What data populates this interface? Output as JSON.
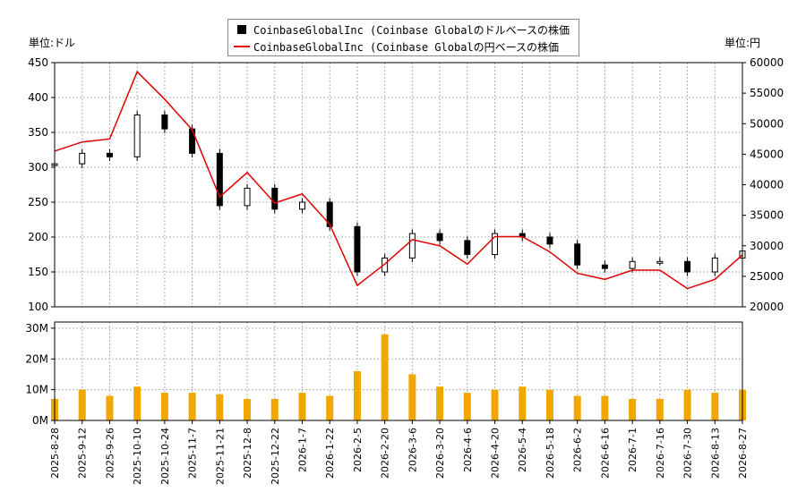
{
  "legend": {
    "usd_label": "CoinbaseGlobalInc (Coinbase Globalのドルベースの株価",
    "jpy_label": "CoinbaseGlobalInc (Coinbase Globalの円ベースの株価"
  },
  "units": {
    "left": "単位:ドル",
    "right": "単位:円"
  },
  "colors": {
    "usd_series": "#000000",
    "jpy_series": "#e00000",
    "volume": "#f0a800",
    "grid": "#b0b0b0"
  },
  "chart_data": [
    {
      "type": "line",
      "title": "",
      "x_ticks": [
        "2025-8-28",
        "2025-9-12",
        "2025-9-26",
        "2025-10-10",
        "2025-10-24",
        "2025-11-7",
        "2025-11-21",
        "2025-12-8",
        "2025-12-22",
        "2026-1-7",
        "2026-1-22",
        "2026-2-5",
        "2026-2-20",
        "2026-3-6",
        "2026-3-20",
        "2026-4-6",
        "2026-4-20",
        "2026-5-4",
        "2026-5-18",
        "2026-6-2",
        "2026-6-16",
        "2026-7-1",
        "2026-7-16",
        "2026-7-30",
        "2026-8-13",
        "2026-8-27"
      ],
      "y_left": {
        "ticks": [
          "450",
          "400",
          "350",
          "300",
          "250",
          "200",
          "150",
          "100"
        ],
        "ylim": [
          100,
          450
        ]
      },
      "y_right": {
        "ticks": [
          "60000",
          "55000",
          "50000",
          "45000",
          "40000",
          "35000",
          "30000",
          "25000",
          "20000"
        ],
        "ylim": [
          20000,
          60000
        ]
      },
      "series": [
        {
          "name": "CoinbaseGlobalInc (Coinbase Globalのドルベースの株価",
          "kind": "candlestick",
          "axis": "left",
          "dates": [
            "2025-8-28",
            "2025-9-12",
            "2025-9-26",
            "2025-10-10",
            "2025-10-24",
            "2025-11-7",
            "2025-11-21",
            "2025-12-8",
            "2025-12-22",
            "2026-1-7",
            "2026-1-22",
            "2026-2-5",
            "2026-2-20",
            "2026-3-6",
            "2026-3-20",
            "2026-4-6",
            "2026-4-20",
            "2026-5-4",
            "2026-5-18",
            "2026-6-2",
            "2026-6-16",
            "2026-7-1",
            "2026-7-16",
            "2026-7-30",
            "2026-8-13",
            "2026-8-27"
          ],
          "values": [
            305,
            320,
            315,
            375,
            355,
            320,
            245,
            270,
            240,
            250,
            215,
            150,
            170,
            205,
            195,
            175,
            205,
            200,
            190,
            160,
            155,
            165,
            165,
            150,
            170,
            180
          ]
        },
        {
          "name": "CoinbaseGlobalInc (Coinbase Globalの円ベースの株価",
          "kind": "line",
          "axis": "right",
          "dates": [
            "2025-8-28",
            "2025-9-12",
            "2025-9-26",
            "2025-10-10",
            "2025-10-24",
            "2025-11-7",
            "2025-11-21",
            "2025-12-8",
            "2025-12-22",
            "2026-1-7",
            "2026-1-22",
            "2026-2-5",
            "2026-2-20",
            "2026-3-6",
            "2026-3-20",
            "2026-4-6",
            "2026-4-20",
            "2026-5-4",
            "2026-5-18",
            "2026-6-2",
            "2026-6-16",
            "2026-7-1",
            "2026-7-16",
            "2026-7-30",
            "2026-8-13",
            "2026-8-27"
          ],
          "values": [
            45500,
            47000,
            47500,
            58500,
            54000,
            49000,
            38000,
            42000,
            37000,
            38500,
            33500,
            23500,
            27000,
            31000,
            30000,
            27000,
            31500,
            31500,
            29000,
            25500,
            24500,
            26000,
            26000,
            23000,
            24500,
            28500
          ]
        }
      ]
    },
    {
      "type": "bar",
      "title": "",
      "y_ticks": [
        "30M",
        "20M",
        "10M",
        "0M"
      ],
      "ylim": [
        0,
        32000000
      ],
      "x": [
        "2025-8-28",
        "2025-9-12",
        "2025-9-26",
        "2025-10-10",
        "2025-10-24",
        "2025-11-7",
        "2025-11-21",
        "2025-12-8",
        "2025-12-22",
        "2026-1-7",
        "2026-1-22",
        "2026-2-5",
        "2026-2-20",
        "2026-3-6",
        "2026-3-20",
        "2026-4-6",
        "2026-4-20",
        "2026-5-4",
        "2026-5-18",
        "2026-6-2",
        "2026-6-16",
        "2026-7-1",
        "2026-7-16",
        "2026-7-30",
        "2026-8-13",
        "2026-8-27"
      ],
      "series": [
        {
          "name": "",
          "values": [
            7000000,
            10000000,
            8000000,
            11000000,
            9000000,
            9000000,
            8500000,
            7000000,
            7000000,
            9000000,
            8000000,
            16000000,
            28000000,
            15000000,
            11000000,
            9000000,
            10000000,
            11000000,
            10000000,
            8000000,
            8000000,
            7000000,
            7000000,
            10000000,
            9000000,
            10000000
          ]
        }
      ]
    }
  ]
}
